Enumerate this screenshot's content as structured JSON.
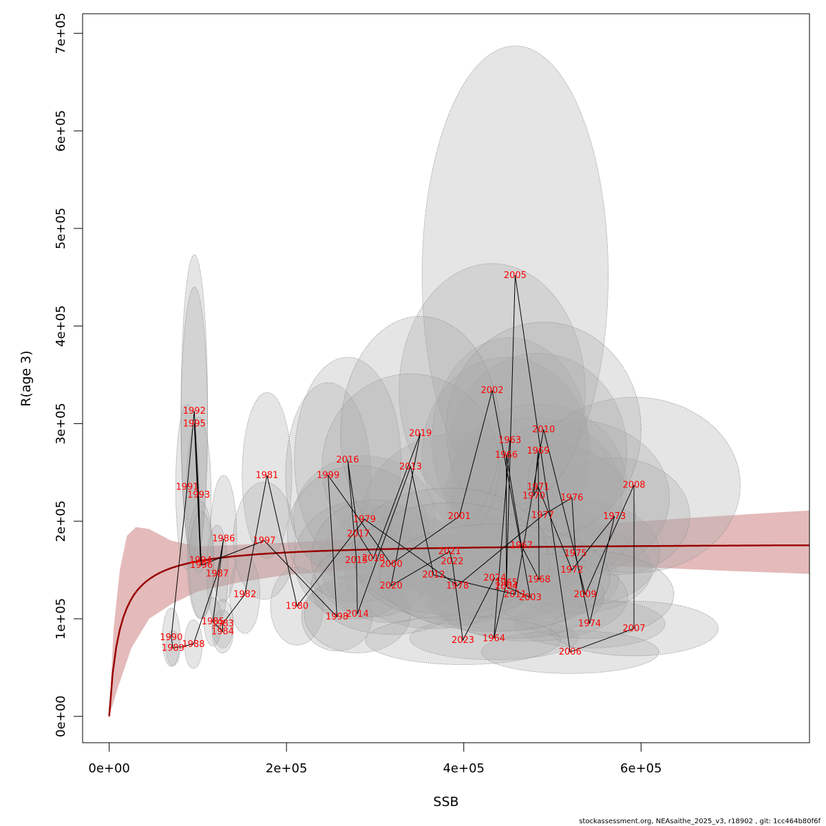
{
  "chart_data": {
    "type": "scatter",
    "title": "",
    "xlabel": "SSB",
    "ylabel": "R(age 3)",
    "xlim": [
      -30000,
      790000
    ],
    "ylim": [
      -27000,
      720000
    ],
    "x_ticks": [
      {
        "value": 0,
        "label": "0e+00"
      },
      {
        "value": 200000,
        "label": "2e+05"
      },
      {
        "value": 400000,
        "label": "4e+05"
      },
      {
        "value": 600000,
        "label": "6e+05"
      }
    ],
    "y_ticks": [
      {
        "value": 0,
        "label": "0e+00"
      },
      {
        "value": 100000,
        "label": "1e+05"
      },
      {
        "value": 200000,
        "label": "2e+05"
      },
      {
        "value": 300000,
        "label": "3e+05"
      },
      {
        "value": 400000,
        "label": "4e+05"
      },
      {
        "value": 500000,
        "label": "5e+05"
      },
      {
        "value": 600000,
        "label": "6e+05"
      },
      {
        "value": 700000,
        "label": "7e+05"
      }
    ],
    "grid": false,
    "colors": {
      "curve": "#990000",
      "band": "#dfaeae",
      "ellipse_fill": "#aaaaaa",
      "ellipse_stroke": "#8c8c8c",
      "trajectory": "#000000",
      "year_label": "#ff0000"
    },
    "stock_recruitment_curve": {
      "asymptote": 178000,
      "half_saturation": 12000,
      "band_upper": [
        [
          0,
          0
        ],
        [
          5000,
          90000
        ],
        [
          12000,
          150000
        ],
        [
          20000,
          185000
        ],
        [
          30000,
          194000
        ],
        [
          45000,
          192000
        ],
        [
          70000,
          180000
        ],
        [
          100000,
          174000
        ],
        [
          200000,
          178000
        ],
        [
          300000,
          183000
        ],
        [
          400000,
          188000
        ],
        [
          500000,
          194000
        ],
        [
          600000,
          200000
        ],
        [
          700000,
          206000
        ],
        [
          790000,
          211000
        ]
      ],
      "band_lower": [
        [
          0,
          0
        ],
        [
          10000,
          30000
        ],
        [
          25000,
          70000
        ],
        [
          45000,
          100000
        ],
        [
          70000,
          115000
        ],
        [
          100000,
          128000
        ],
        [
          150000,
          138000
        ],
        [
          200000,
          145000
        ],
        [
          300000,
          152000
        ],
        [
          400000,
          155000
        ],
        [
          500000,
          156000
        ],
        [
          600000,
          153000
        ],
        [
          700000,
          149000
        ],
        [
          790000,
          146000
        ]
      ]
    },
    "points": [
      {
        "year": "1963",
        "ssb": 452000,
        "r": 283000,
        "sx": 88000,
        "sy": 105000
      },
      {
        "year": "1964",
        "ssb": 434000,
        "r": 80000,
        "sx": 95000,
        "sy": 22000
      },
      {
        "year": "1965",
        "ssb": 448000,
        "r": 137000,
        "sx": 88000,
        "sy": 38000
      },
      {
        "year": "1966",
        "ssb": 448000,
        "r": 268000,
        "sx": 95000,
        "sy": 100000
      },
      {
        "year": "1967",
        "ssb": 465000,
        "r": 175000,
        "sx": 95000,
        "sy": 55000
      },
      {
        "year": "1968",
        "ssb": 485000,
        "r": 140000,
        "sx": 90000,
        "sy": 40000
      },
      {
        "year": "1969",
        "ssb": 484000,
        "r": 272000,
        "sx": 100000,
        "sy": 100000
      },
      {
        "year": "1970",
        "ssb": 479000,
        "r": 226000,
        "sx": 100000,
        "sy": 80000
      },
      {
        "year": "1971",
        "ssb": 484000,
        "r": 235000,
        "sx": 100000,
        "sy": 85000
      },
      {
        "year": "1972",
        "ssb": 522000,
        "r": 150000,
        "sx": 90000,
        "sy": 45000
      },
      {
        "year": "1973",
        "ssb": 570000,
        "r": 205000,
        "sx": 85000,
        "sy": 60000
      },
      {
        "year": "1974",
        "ssb": 542000,
        "r": 95000,
        "sx": 85000,
        "sy": 25000
      },
      {
        "year": "1975",
        "ssb": 526000,
        "r": 167000,
        "sx": 95000,
        "sy": 55000
      },
      {
        "year": "1976",
        "ssb": 522000,
        "r": 224000,
        "sx": 110000,
        "sy": 80000
      },
      {
        "year": "1977",
        "ssb": 489000,
        "r": 206000,
        "sx": 105000,
        "sy": 75000
      },
      {
        "year": "1978",
        "ssb": 393000,
        "r": 134000,
        "sx": 80000,
        "sy": 40000
      },
      {
        "year": "1979",
        "ssb": 288000,
        "r": 202000,
        "sx": 80000,
        "sy": 65000
      },
      {
        "year": "1980",
        "ssb": 212000,
        "r": 113000,
        "sx": 30000,
        "sy": 40000
      },
      {
        "year": "1981",
        "ssb": 178000,
        "r": 247000,
        "sx": 28000,
        "sy": 85000
      },
      {
        "year": "1982",
        "ssb": 153000,
        "r": 125000,
        "sx": 17000,
        "sy": 40000
      },
      {
        "year": "1983",
        "ssb": 128000,
        "r": 95000,
        "sx": 12000,
        "sy": 25000
      },
      {
        "year": "1984",
        "ssb": 128000,
        "r": 87000,
        "sx": 12000,
        "sy": 22000
      },
      {
        "year": "1985",
        "ssb": 117000,
        "r": 97000,
        "sx": 10000,
        "sy": 25000
      },
      {
        "year": "1986",
        "ssb": 129000,
        "r": 182000,
        "sx": 15000,
        "sy": 65000
      },
      {
        "year": "1987",
        "ssb": 122000,
        "r": 146000,
        "sx": 12000,
        "sy": 50000
      },
      {
        "year": "1988",
        "ssb": 95000,
        "r": 74000,
        "sx": 10000,
        "sy": 25000
      },
      {
        "year": "1989",
        "ssb": 72000,
        "r": 70000,
        "sx": 8000,
        "sy": 18000
      },
      {
        "year": "1990",
        "ssb": 70000,
        "r": 81000,
        "sx": 10000,
        "sy": 30000
      },
      {
        "year": "1991",
        "ssb": 88000,
        "r": 235000,
        "sx": 13000,
        "sy": 85000
      },
      {
        "year": "1992",
        "ssb": 96000,
        "r": 313000,
        "sx": 15000,
        "sy": 160000
      },
      {
        "year": "1993",
        "ssb": 101000,
        "r": 227000,
        "sx": 14000,
        "sy": 80000
      },
      {
        "year": "1994",
        "ssb": 103000,
        "r": 160000,
        "sx": 15000,
        "sy": 60000
      },
      {
        "year": "1995",
        "ssb": 96000,
        "r": 300000,
        "sx": 15000,
        "sy": 140000
      },
      {
        "year": "1996",
        "ssb": 104000,
        "r": 155000,
        "sx": 14000,
        "sy": 55000
      },
      {
        "year": "1997",
        "ssb": 175000,
        "r": 180000,
        "sx": 35000,
        "sy": 60000
      },
      {
        "year": "1998",
        "ssb": 257000,
        "r": 102000,
        "sx": 40000,
        "sy": 35000
      },
      {
        "year": "1999",
        "ssb": 247000,
        "r": 247000,
        "sx": 48000,
        "sy": 95000
      },
      {
        "year": "2000",
        "ssb": 318000,
        "r": 156000,
        "sx": 80000,
        "sy": 60000
      },
      {
        "year": "2001",
        "ssb": 395000,
        "r": 205000,
        "sx": 110000,
        "sy": 85000
      },
      {
        "year": "2002",
        "ssb": 432000,
        "r": 334000,
        "sx": 105000,
        "sy": 130000
      },
      {
        "year": "2003",
        "ssb": 475000,
        "r": 122000,
        "sx": 110000,
        "sy": 45000
      },
      {
        "year": "2004",
        "ssb": 448000,
        "r": 133000,
        "sx": 100000,
        "sy": 45000
      },
      {
        "year": "2005",
        "ssb": 458000,
        "r": 452000,
        "sx": 105000,
        "sy": 235000
      },
      {
        "year": "2006",
        "ssb": 520000,
        "r": 66000,
        "sx": 100000,
        "sy": 22000
      },
      {
        "year": "2007",
        "ssb": 592000,
        "r": 90000,
        "sx": 95000,
        "sy": 28000
      },
      {
        "year": "2008",
        "ssb": 592000,
        "r": 237000,
        "sx": 120000,
        "sy": 90000
      },
      {
        "year": "2009",
        "ssb": 537000,
        "r": 125000,
        "sx": 100000,
        "sy": 45000
      },
      {
        "year": "2010",
        "ssb": 490000,
        "r": 294000,
        "sx": 110000,
        "sy": 110000
      },
      {
        "year": "2011",
        "ssb": 458000,
        "r": 125000,
        "sx": 100000,
        "sy": 45000
      },
      {
        "year": "2012",
        "ssb": 366000,
        "r": 145000,
        "sx": 100000,
        "sy": 55000
      },
      {
        "year": "2013",
        "ssb": 340000,
        "r": 256000,
        "sx": 100000,
        "sy": 95000
      },
      {
        "year": "2014",
        "ssb": 280000,
        "r": 105000,
        "sx": 60000,
        "sy": 40000
      },
      {
        "year": "2015",
        "ssb": 279000,
        "r": 160000,
        "sx": 70000,
        "sy": 60000
      },
      {
        "year": "2016",
        "ssb": 269000,
        "r": 263000,
        "sx": 60000,
        "sy": 105000
      },
      {
        "year": "2017",
        "ssb": 281000,
        "r": 187000,
        "sx": 80000,
        "sy": 70000
      },
      {
        "year": "2018",
        "ssb": 298000,
        "r": 162000,
        "sx": 70000,
        "sy": 60000
      },
      {
        "year": "2019",
        "ssb": 351000,
        "r": 290000,
        "sx": 90000,
        "sy": 120000
      },
      {
        "year": "2020",
        "ssb": 318000,
        "r": 134000,
        "sx": 90000,
        "sy": 50000
      },
      {
        "year": "2021",
        "ssb": 384000,
        "r": 169000,
        "sx": 110000,
        "sy": 65000
      },
      {
        "year": "2022",
        "ssb": 387000,
        "r": 159000,
        "sx": 110000,
        "sy": 60000
      },
      {
        "year": "2023",
        "ssb": 399000,
        "r": 78000,
        "sx": 110000,
        "sy": 25000
      },
      {
        "year": "2024",
        "ssb": 435000,
        "r": 142000,
        "sx": 130000,
        "sy": 55000
      }
    ]
  },
  "footer": {
    "credit": "stockassessment.org, NEAsaithe_2025_v3, r18902 , git: 1cc464b80f6f"
  }
}
